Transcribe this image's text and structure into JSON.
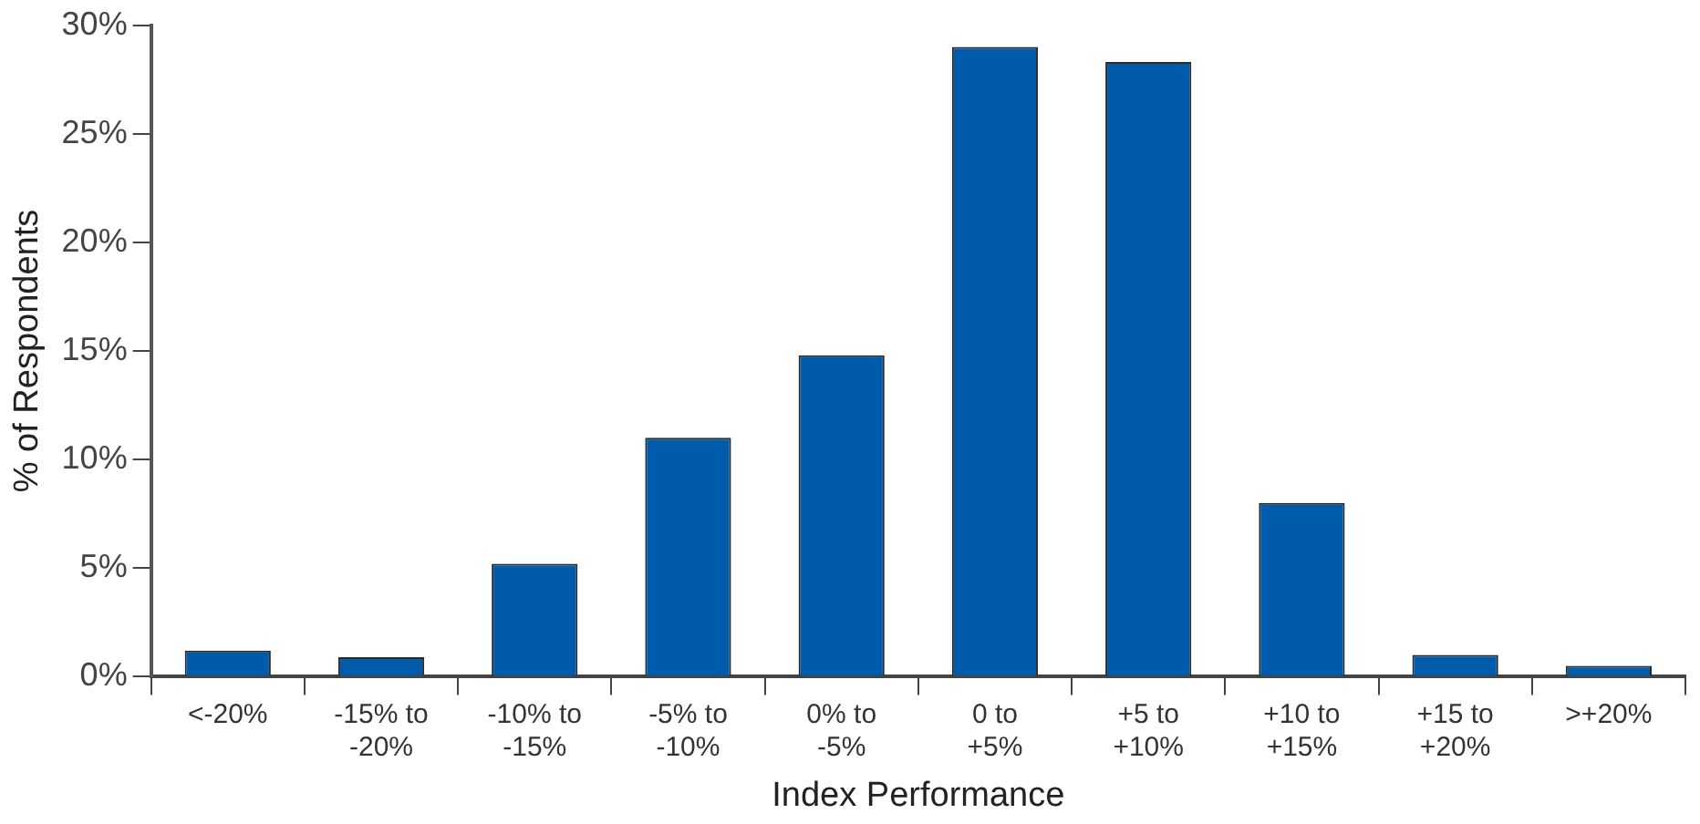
{
  "chart_data": {
    "type": "bar",
    "xlabel": "Index Performance",
    "ylabel": "% of Respondents",
    "categories": [
      "<-20%",
      "-15% to -20%",
      "-10% to -15%",
      "-5% to -10%",
      "0% to -5%",
      "0 to +5%",
      "+5 to +10%",
      "+10 to +15%",
      "+15 to +20%",
      ">+20%"
    ],
    "values": [
      1.2,
      0.9,
      5.2,
      11.0,
      14.8,
      29.0,
      28.3,
      8.0,
      1.0,
      0.5
    ],
    "color": "#005bab",
    "ylim": [
      0,
      30
    ],
    "yticks": [
      {
        "value": 0,
        "label": "0%"
      },
      {
        "value": 5,
        "label": "5%"
      },
      {
        "value": 10,
        "label": "10%"
      },
      {
        "value": 15,
        "label": "15%"
      },
      {
        "value": 20,
        "label": "20%"
      },
      {
        "value": 25,
        "label": "25%"
      },
      {
        "value": 30,
        "label": "30%"
      }
    ],
    "grid": false,
    "legend": false
  }
}
